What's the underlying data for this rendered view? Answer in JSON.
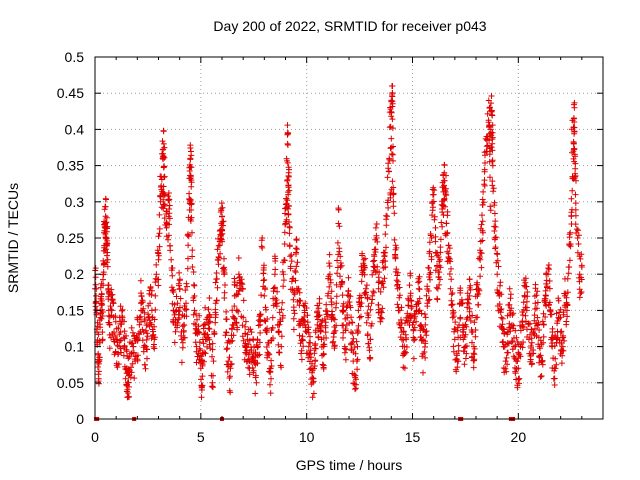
{
  "chart_data": {
    "type": "scatter",
    "title": "Day 200 of 2022, SRMTID for receiver p043",
    "xlabel": "GPS time / hours",
    "ylabel": "SRMTID / TECUs",
    "xlim": [
      0,
      24
    ],
    "ylim": [
      0,
      0.5
    ],
    "x_ticks": [
      0,
      5,
      10,
      15,
      20
    ],
    "x_tick_labels": [
      "0",
      "5",
      "10",
      "15",
      "20"
    ],
    "y_ticks": [
      0,
      0.05,
      0.1,
      0.15,
      0.2,
      0.25,
      0.3,
      0.35,
      0.4,
      0.45,
      0.5
    ],
    "y_tick_labels": [
      "0",
      "0.05",
      "0.1",
      "0.15",
      "0.2",
      "0.25",
      "0.3",
      "0.35",
      "0.4",
      "0.45",
      "0.5"
    ],
    "grid": true,
    "marker": "+",
    "color": "#e00000",
    "zero_marker_x": [
      0.05,
      0.1,
      1.85,
      6.0,
      17.25,
      17.3,
      19.65,
      19.75
    ],
    "peaks": [
      {
        "x": 0.5,
        "y": 0.28,
        "w": 0.15
      },
      {
        "x": 3.2,
        "y": 0.38,
        "w": 0.25
      },
      {
        "x": 4.5,
        "y": 0.37,
        "w": 0.1
      },
      {
        "x": 6.0,
        "y": 0.29,
        "w": 0.15
      },
      {
        "x": 9.1,
        "y": 0.38,
        "w": 0.1
      },
      {
        "x": 14.0,
        "y": 0.45,
        "w": 0.15
      },
      {
        "x": 16.5,
        "y": 0.34,
        "w": 0.2
      },
      {
        "x": 18.7,
        "y": 0.42,
        "w": 0.2
      },
      {
        "x": 22.6,
        "y": 0.43,
        "w": 0.15
      }
    ],
    "points": [
      [
        0.0,
        0.18
      ],
      [
        0.05,
        0.17
      ],
      [
        0.1,
        0.12
      ],
      [
        0.15,
        0.09
      ],
      [
        0.2,
        0.08
      ],
      [
        0.25,
        0.14
      ],
      [
        0.3,
        0.16
      ],
      [
        0.35,
        0.12
      ],
      [
        0.4,
        0.2
      ],
      [
        0.45,
        0.26
      ],
      [
        0.5,
        0.28
      ],
      [
        0.55,
        0.25
      ],
      [
        0.6,
        0.22
      ],
      [
        0.65,
        0.15
      ],
      [
        0.7,
        0.13
      ],
      [
        0.8,
        0.15
      ],
      [
        0.9,
        0.12
      ],
      [
        1.0,
        0.11
      ],
      [
        1.1,
        0.09
      ],
      [
        1.2,
        0.12
      ],
      [
        1.3,
        0.14
      ],
      [
        1.4,
        0.1
      ],
      [
        1.5,
        0.07
      ],
      [
        1.55,
        0.05
      ],
      [
        1.6,
        0.06
      ],
      [
        1.7,
        0.09
      ],
      [
        1.8,
        0.1
      ],
      [
        1.9,
        0.08
      ],
      [
        2.0,
        0.11
      ],
      [
        2.1,
        0.14
      ],
      [
        2.2,
        0.17
      ],
      [
        2.3,
        0.12
      ],
      [
        2.4,
        0.1
      ],
      [
        2.5,
        0.13
      ],
      [
        2.6,
        0.16
      ],
      [
        2.7,
        0.14
      ],
      [
        2.8,
        0.11
      ],
      [
        2.9,
        0.2
      ],
      [
        3.0,
        0.22
      ],
      [
        3.1,
        0.3
      ],
      [
        3.2,
        0.36
      ],
      [
        3.25,
        0.38
      ],
      [
        3.3,
        0.31
      ],
      [
        3.4,
        0.27
      ],
      [
        3.5,
        0.29
      ],
      [
        3.6,
        0.22
      ],
      [
        3.7,
        0.15
      ],
      [
        3.8,
        0.13
      ],
      [
        3.9,
        0.16
      ],
      [
        4.0,
        0.18
      ],
      [
        4.1,
        0.11
      ],
      [
        4.2,
        0.13
      ],
      [
        4.3,
        0.16
      ],
      [
        4.4,
        0.24
      ],
      [
        4.5,
        0.36
      ],
      [
        4.55,
        0.33
      ],
      [
        4.6,
        0.21
      ],
      [
        4.7,
        0.15
      ],
      [
        4.8,
        0.1
      ],
      [
        4.9,
        0.12
      ],
      [
        5.0,
        0.07
      ],
      [
        5.05,
        0.04
      ],
      [
        5.1,
        0.09
      ],
      [
        5.2,
        0.13
      ],
      [
        5.3,
        0.11
      ],
      [
        5.4,
        0.14
      ],
      [
        5.5,
        0.06
      ],
      [
        5.6,
        0.08
      ],
      [
        5.7,
        0.16
      ],
      [
        5.8,
        0.22
      ],
      [
        5.9,
        0.24
      ],
      [
        6.0,
        0.28
      ],
      [
        6.1,
        0.2
      ],
      [
        6.2,
        0.12
      ],
      [
        6.3,
        0.08
      ],
      [
        6.4,
        0.07
      ],
      [
        6.5,
        0.13
      ],
      [
        6.6,
        0.17
      ],
      [
        6.7,
        0.15
      ],
      [
        6.8,
        0.2
      ],
      [
        6.9,
        0.18
      ],
      [
        7.0,
        0.14
      ],
      [
        7.1,
        0.1
      ],
      [
        7.2,
        0.11
      ],
      [
        7.3,
        0.08
      ],
      [
        7.4,
        0.12
      ],
      [
        7.5,
        0.09
      ],
      [
        7.6,
        0.06
      ],
      [
        7.7,
        0.1
      ],
      [
        7.8,
        0.13
      ],
      [
        7.9,
        0.25
      ],
      [
        8.0,
        0.17
      ],
      [
        8.1,
        0.12
      ],
      [
        8.2,
        0.09
      ],
      [
        8.3,
        0.07
      ],
      [
        8.4,
        0.14
      ],
      [
        8.5,
        0.2
      ],
      [
        8.6,
        0.16
      ],
      [
        8.7,
        0.12
      ],
      [
        8.8,
        0.1
      ],
      [
        8.9,
        0.2
      ],
      [
        9.0,
        0.27
      ],
      [
        9.1,
        0.38
      ],
      [
        9.15,
        0.34
      ],
      [
        9.2,
        0.24
      ],
      [
        9.3,
        0.19
      ],
      [
        9.4,
        0.15
      ],
      [
        9.5,
        0.23
      ],
      [
        9.6,
        0.18
      ],
      [
        9.7,
        0.13
      ],
      [
        9.8,
        0.11
      ],
      [
        9.9,
        0.15
      ],
      [
        10.0,
        0.12
      ],
      [
        10.1,
        0.1
      ],
      [
        10.2,
        0.07
      ],
      [
        10.3,
        0.05
      ],
      [
        10.4,
        0.08
      ],
      [
        10.5,
        0.13
      ],
      [
        10.6,
        0.16
      ],
      [
        10.7,
        0.11
      ],
      [
        10.8,
        0.09
      ],
      [
        10.9,
        0.12
      ],
      [
        11.0,
        0.17
      ],
      [
        11.1,
        0.2
      ],
      [
        11.2,
        0.14
      ],
      [
        11.3,
        0.12
      ],
      [
        11.4,
        0.16
      ],
      [
        11.5,
        0.27
      ],
      [
        11.6,
        0.21
      ],
      [
        11.7,
        0.15
      ],
      [
        11.8,
        0.1
      ],
      [
        11.9,
        0.13
      ],
      [
        12.0,
        0.17
      ],
      [
        12.1,
        0.12
      ],
      [
        12.2,
        0.08
      ],
      [
        12.3,
        0.06
      ],
      [
        12.4,
        0.1
      ],
      [
        12.5,
        0.14
      ],
      [
        12.6,
        0.19
      ],
      [
        12.7,
        0.22
      ],
      [
        12.8,
        0.18
      ],
      [
        12.9,
        0.14
      ],
      [
        13.0,
        0.11
      ],
      [
        13.1,
        0.17
      ],
      [
        13.2,
        0.21
      ],
      [
        13.3,
        0.25
      ],
      [
        13.4,
        0.18
      ],
      [
        13.5,
        0.14
      ],
      [
        13.6,
        0.19
      ],
      [
        13.7,
        0.21
      ],
      [
        13.8,
        0.28
      ],
      [
        13.9,
        0.36
      ],
      [
        14.0,
        0.44
      ],
      [
        14.05,
        0.45
      ],
      [
        14.1,
        0.3
      ],
      [
        14.2,
        0.24
      ],
      [
        14.3,
        0.18
      ],
      [
        14.4,
        0.15
      ],
      [
        14.5,
        0.12
      ],
      [
        14.6,
        0.09
      ],
      [
        14.7,
        0.11
      ],
      [
        14.8,
        0.14
      ],
      [
        14.9,
        0.17
      ],
      [
        15.0,
        0.13
      ],
      [
        15.1,
        0.11
      ],
      [
        15.2,
        0.15
      ],
      [
        15.3,
        0.18
      ],
      [
        15.4,
        0.13
      ],
      [
        15.5,
        0.09
      ],
      [
        15.6,
        0.12
      ],
      [
        15.7,
        0.16
      ],
      [
        15.8,
        0.2
      ],
      [
        15.9,
        0.25
      ],
      [
        16.0,
        0.31
      ],
      [
        16.1,
        0.23
      ],
      [
        16.2,
        0.18
      ],
      [
        16.3,
        0.22
      ],
      [
        16.4,
        0.29
      ],
      [
        16.5,
        0.34
      ],
      [
        16.6,
        0.27
      ],
      [
        16.7,
        0.24
      ],
      [
        16.8,
        0.18
      ],
      [
        16.9,
        0.14
      ],
      [
        17.0,
        0.11
      ],
      [
        17.1,
        0.09
      ],
      [
        17.2,
        0.13
      ],
      [
        17.3,
        0.16
      ],
      [
        17.4,
        0.12
      ],
      [
        17.5,
        0.1
      ],
      [
        17.6,
        0.14
      ],
      [
        17.7,
        0.17
      ],
      [
        17.8,
        0.12
      ],
      [
        17.9,
        0.1
      ],
      [
        18.0,
        0.14
      ],
      [
        18.1,
        0.18
      ],
      [
        18.2,
        0.22
      ],
      [
        18.3,
        0.26
      ],
      [
        18.4,
        0.33
      ],
      [
        18.5,
        0.39
      ],
      [
        18.6,
        0.41
      ],
      [
        18.7,
        0.4
      ],
      [
        18.75,
        0.42
      ],
      [
        18.8,
        0.35
      ],
      [
        18.9,
        0.25
      ],
      [
        19.0,
        0.2
      ],
      [
        19.1,
        0.17
      ],
      [
        19.2,
        0.14
      ],
      [
        19.3,
        0.1
      ],
      [
        19.4,
        0.08
      ],
      [
        19.5,
        0.12
      ],
      [
        19.6,
        0.15
      ],
      [
        19.7,
        0.13
      ],
      [
        19.8,
        0.1
      ],
      [
        19.9,
        0.08
      ],
      [
        20.0,
        0.07
      ],
      [
        20.1,
        0.1
      ],
      [
        20.2,
        0.13
      ],
      [
        20.3,
        0.17
      ],
      [
        20.4,
        0.15
      ],
      [
        20.5,
        0.11
      ],
      [
        20.6,
        0.09
      ],
      [
        20.7,
        0.12
      ],
      [
        20.8,
        0.16
      ],
      [
        20.9,
        0.14
      ],
      [
        21.0,
        0.1
      ],
      [
        21.1,
        0.08
      ],
      [
        21.2,
        0.13
      ],
      [
        21.3,
        0.17
      ],
      [
        21.4,
        0.2
      ],
      [
        21.5,
        0.15
      ],
      [
        21.6,
        0.1
      ],
      [
        21.7,
        0.07
      ],
      [
        21.8,
        0.11
      ],
      [
        21.9,
        0.14
      ],
      [
        22.0,
        0.12
      ],
      [
        22.1,
        0.1
      ],
      [
        22.2,
        0.17
      ],
      [
        22.3,
        0.15
      ],
      [
        22.4,
        0.21
      ],
      [
        22.5,
        0.28
      ],
      [
        22.6,
        0.37
      ],
      [
        22.65,
        0.43
      ],
      [
        22.7,
        0.31
      ],
      [
        22.8,
        0.25
      ],
      [
        22.9,
        0.2
      ],
      [
        23.0,
        0.21
      ]
    ]
  }
}
